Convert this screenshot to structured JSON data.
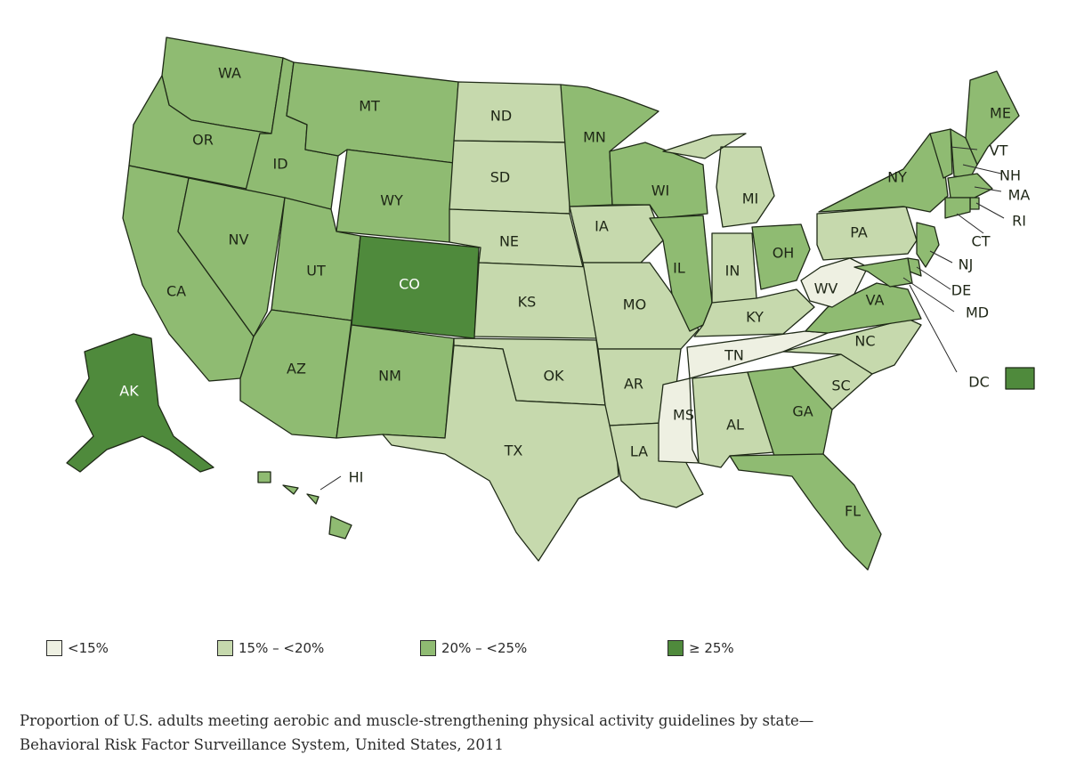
{
  "colors": {
    "lt15": "#eef0e2",
    "r15_20": "#c6d9ad",
    "r20_25": "#8fbb72",
    "ge25": "#4f8a3c"
  },
  "legend": [
    {
      "key": "lt15",
      "label": "<15%"
    },
    {
      "key": "r15_20",
      "label": "15% – <20%"
    },
    {
      "key": "r20_25",
      "label": "20% – <25%"
    },
    {
      "key": "ge25",
      "label": "≥ 25%"
    }
  ],
  "caption": {
    "line1": "Proportion of U.S. adults meeting aerobic and muscle-strengthening physical activity guidelines by state—",
    "line2": "Behavioral Risk Factor Surveillance System, United States, 2011"
  },
  "states": [
    {
      "code": "WA",
      "label": "WA",
      "category": "r20_25"
    },
    {
      "code": "OR",
      "label": "OR",
      "category": "r20_25"
    },
    {
      "code": "CA",
      "label": "CA",
      "category": "r20_25"
    },
    {
      "code": "ID",
      "label": "ID",
      "category": "r20_25"
    },
    {
      "code": "NV",
      "label": "NV",
      "category": "r20_25"
    },
    {
      "code": "MT",
      "label": "MT",
      "category": "r20_25"
    },
    {
      "code": "WY",
      "label": "WY",
      "category": "r20_25"
    },
    {
      "code": "UT",
      "label": "UT",
      "category": "r20_25"
    },
    {
      "code": "AZ",
      "label": "AZ",
      "category": "r20_25"
    },
    {
      "code": "CO",
      "label": "CO",
      "category": "ge25"
    },
    {
      "code": "NM",
      "label": "NM",
      "category": "r20_25"
    },
    {
      "code": "ND",
      "label": "ND",
      "category": "r15_20"
    },
    {
      "code": "SD",
      "label": "SD",
      "category": "r15_20"
    },
    {
      "code": "NE",
      "label": "NE",
      "category": "r15_20"
    },
    {
      "code": "KS",
      "label": "KS",
      "category": "r15_20"
    },
    {
      "code": "OK",
      "label": "OK",
      "category": "r15_20"
    },
    {
      "code": "TX",
      "label": "TX",
      "category": "r15_20"
    },
    {
      "code": "MN",
      "label": "MN",
      "category": "r20_25"
    },
    {
      "code": "IA",
      "label": "IA",
      "category": "r15_20"
    },
    {
      "code": "MO",
      "label": "MO",
      "category": "r15_20"
    },
    {
      "code": "AR",
      "label": "AR",
      "category": "r15_20"
    },
    {
      "code": "LA",
      "label": "LA",
      "category": "r15_20"
    },
    {
      "code": "WI",
      "label": "WI",
      "category": "r20_25"
    },
    {
      "code": "IL",
      "label": "IL",
      "category": "r20_25"
    },
    {
      "code": "MI",
      "label": "MI",
      "category": "r15_20"
    },
    {
      "code": "IN",
      "label": "IN",
      "category": "r15_20"
    },
    {
      "code": "OH",
      "label": "OH",
      "category": "r20_25"
    },
    {
      "code": "KY",
      "label": "KY",
      "category": "r15_20"
    },
    {
      "code": "TN",
      "label": "TN",
      "category": "lt15"
    },
    {
      "code": "MS",
      "label": "MS",
      "category": "lt15"
    },
    {
      "code": "AL",
      "label": "AL",
      "category": "r15_20"
    },
    {
      "code": "GA",
      "label": "GA",
      "category": "r20_25"
    },
    {
      "code": "FL",
      "label": "FL",
      "category": "r20_25"
    },
    {
      "code": "SC",
      "label": "SC",
      "category": "r15_20"
    },
    {
      "code": "NC",
      "label": "NC",
      "category": "r15_20"
    },
    {
      "code": "VA",
      "label": "VA",
      "category": "r20_25"
    },
    {
      "code": "WV",
      "label": "WV",
      "category": "lt15"
    },
    {
      "code": "PA",
      "label": "PA",
      "category": "r15_20"
    },
    {
      "code": "NY",
      "label": "NY",
      "category": "r20_25"
    },
    {
      "code": "ME",
      "label": "ME",
      "category": "r20_25"
    },
    {
      "code": "VT",
      "label": "VT",
      "category": "r20_25"
    },
    {
      "code": "NH",
      "label": "NH",
      "category": "r20_25"
    },
    {
      "code": "MA",
      "label": "MA",
      "category": "r20_25"
    },
    {
      "code": "RI",
      "label": "RI",
      "category": "r20_25"
    },
    {
      "code": "CT",
      "label": "CT",
      "category": "r20_25"
    },
    {
      "code": "NJ",
      "label": "NJ",
      "category": "r20_25"
    },
    {
      "code": "DE",
      "label": "DE",
      "category": "r20_25"
    },
    {
      "code": "MD",
      "label": "MD",
      "category": "r20_25"
    },
    {
      "code": "DC",
      "label": "DC",
      "category": "ge25"
    },
    {
      "code": "AK",
      "label": "AK",
      "category": "ge25"
    },
    {
      "code": "HI",
      "label": "HI",
      "category": "r20_25"
    }
  ]
}
